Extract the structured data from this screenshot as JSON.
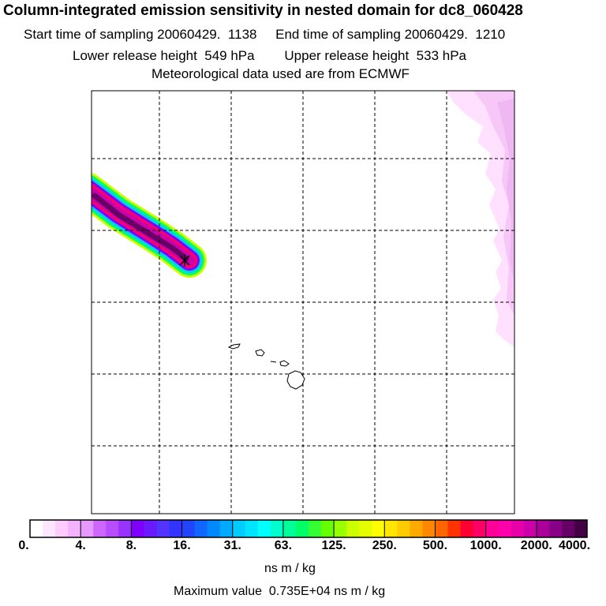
{
  "header": {
    "title": "Column-integrated emission sensitivity in nested domain for dc8_060428",
    "sampling_line": "Start time of sampling 20060429.  1138     End time of sampling 20060429.  1210",
    "release_line": "Lower release height  549 hPa        Upper release height  533 hPa",
    "met_line": "Meteorological data used are from ECMWF"
  },
  "map": {
    "grid": "on",
    "release_marker": "x-marker-icon",
    "features": [
      "hawaiian-islands-icon"
    ]
  },
  "colorbar": {
    "ticks": [
      "0.",
      "4.",
      "8.",
      "16.",
      "31.",
      "63.",
      "125.",
      "250.",
      "500.",
      "1000.",
      "2000.",
      "4000."
    ],
    "colors": [
      "#ffffff",
      "#ffe6ff",
      "#ffccff",
      "#f5b3ff",
      "#e699ff",
      "#cc66ff",
      "#b84dff",
      "#9933ff",
      "#8000ff",
      "#6a1aff",
      "#5533ff",
      "#3333ff",
      "#2244ff",
      "#1166ff",
      "#0088ff",
      "#00aaff",
      "#00ccff",
      "#00e5ff",
      "#00ffff",
      "#00ffcc",
      "#00ff99",
      "#00ff66",
      "#33ff33",
      "#66ff00",
      "#99ff00",
      "#ccff00",
      "#e6ff00",
      "#ffff00",
      "#ffe600",
      "#ffcc00",
      "#ffaa00",
      "#ff8800",
      "#ff6600",
      "#ff3300",
      "#ff0033",
      "#ff0066",
      "#ff0099",
      "#ff00aa",
      "#e600aa",
      "#cc00aa",
      "#aa0099",
      "#880088",
      "#660066",
      "#440044"
    ],
    "unit": "ns m / kg",
    "max_value": "Maximum value  0.735E+04 ns m / kg"
  }
}
